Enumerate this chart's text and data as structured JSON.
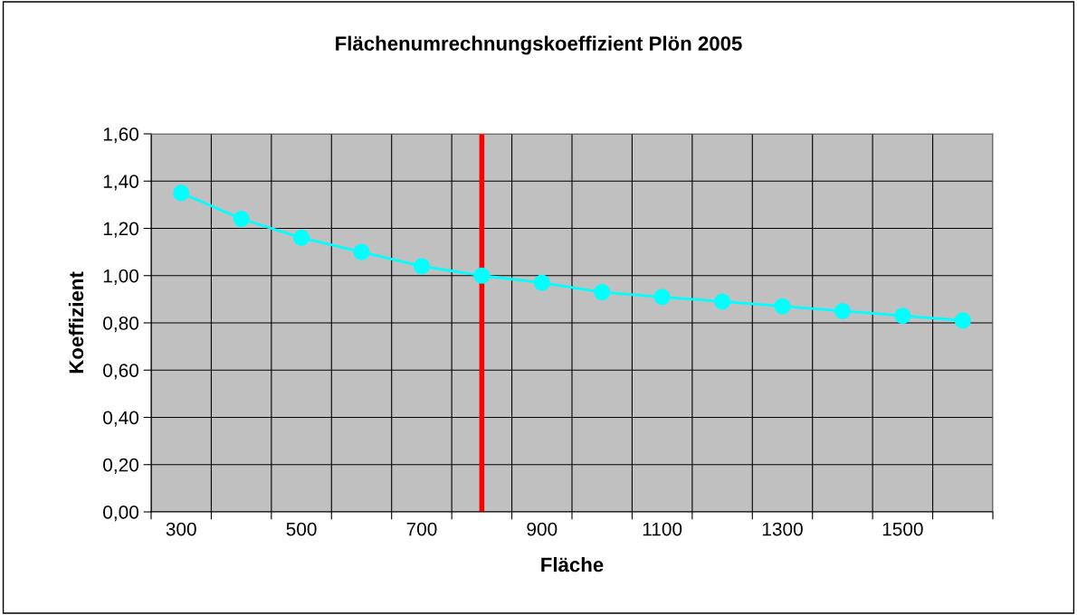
{
  "chart_data": {
    "type": "line",
    "title": "Flächenumrechnungskoeffizient Plön 2005",
    "xlabel": "Fläche",
    "ylabel": "Koeffizient",
    "x": [
      300,
      400,
      500,
      600,
      700,
      800,
      900,
      1000,
      1100,
      1200,
      1300,
      1400,
      1500,
      1600
    ],
    "series": [
      {
        "color": "#00ffff",
        "values": [
          1.35,
          1.24,
          1.16,
          1.1,
          1.04,
          1.0,
          0.97,
          0.93,
          0.91,
          0.89,
          0.87,
          0.85,
          0.83,
          0.81
        ]
      }
    ],
    "xlim": [
      250,
      1650
    ],
    "xticks": [
      {
        "value": 250,
        "label": null
      },
      300,
      {
        "value": 350,
        "label": null
      },
      {
        "value": 450,
        "label": null
      },
      500,
      {
        "value": 550,
        "label": null
      },
      {
        "value": 650,
        "label": null
      },
      700,
      {
        "value": 750,
        "label": null
      },
      {
        "value": 850,
        "label": null
      },
      900,
      {
        "value": 950,
        "label": null
      },
      {
        "value": 1050,
        "label": null
      },
      1100,
      {
        "value": 1150,
        "label": null
      },
      {
        "value": 1250,
        "label": null
      },
      1300,
      {
        "value": 1350,
        "label": null
      },
      {
        "value": 1450,
        "label": null
      },
      1500,
      {
        "value": 1550,
        "label": null
      },
      {
        "value": 1650,
        "label": null
      }
    ],
    "ylim": [
      0,
      1.6
    ],
    "yticks": [
      {
        "value": 0,
        "label": "0,00"
      },
      {
        "value": 0.2,
        "label": "0,20"
      },
      {
        "value": 0.4,
        "label": "0,40"
      },
      {
        "value": 0.6,
        "label": "0,60"
      },
      {
        "value": 0.8,
        "label": "0,80"
      },
      {
        "value": 1.0,
        "label": "1,00"
      },
      {
        "value": 1.2,
        "label": "1,20"
      },
      {
        "value": 1.4,
        "label": "1,40"
      },
      {
        "value": 1.6,
        "label": "1,60"
      }
    ],
    "ref_lines": [
      {
        "axis": "x",
        "value": 800,
        "color": "#ff0000"
      }
    ],
    "grid": true,
    "marker": "circle",
    "line_style": "solid"
  }
}
